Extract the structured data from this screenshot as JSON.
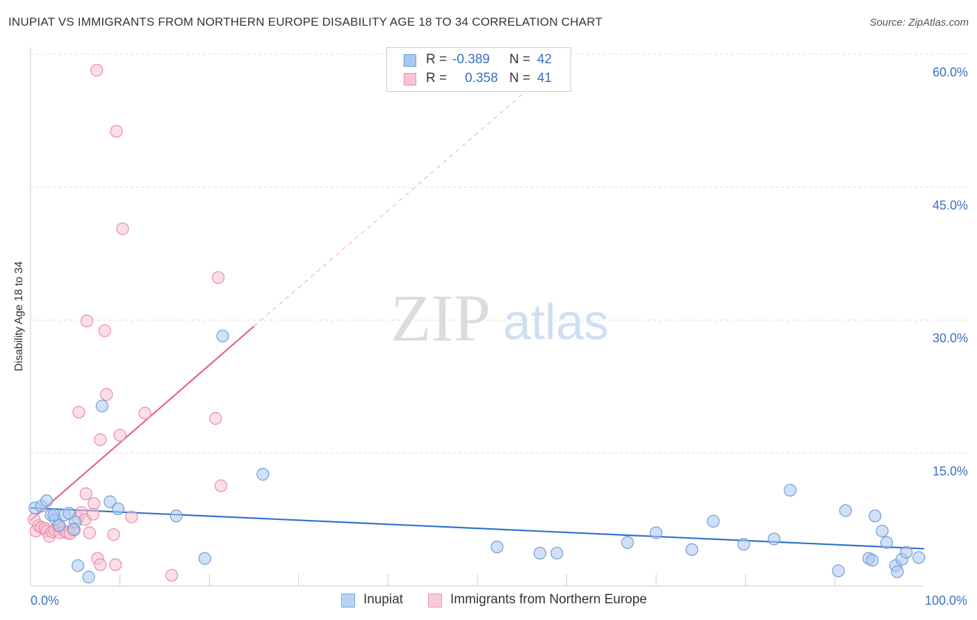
{
  "header": {
    "title": "INUPIAT VS IMMIGRANTS FROM NORTHERN EUROPE DISABILITY AGE 18 TO 34 CORRELATION CHART",
    "source": "Source: ZipAtlas.com"
  },
  "watermark": {
    "zip": "ZIP",
    "atlas": "atlas"
  },
  "legend": {
    "rows": [
      {
        "r_label": "R =",
        "r_value": "-0.389",
        "n_label": "N =",
        "n_value": "42",
        "color": "#a9c8f0",
        "border": "#6f9bd8"
      },
      {
        "r_label": "R =",
        "r_value": "0.358",
        "n_label": "N =",
        "n_value": "41",
        "color": "#f8c4d4",
        "border": "#e88aa6"
      }
    ]
  },
  "bottom_legend": {
    "items": [
      {
        "label": "Inupiat",
        "color": "#b9d3f3",
        "border": "#7aa3dc"
      },
      {
        "label": "Immigrants from Northern Europe",
        "color": "#fac9d7",
        "border": "#e997b0"
      }
    ]
  },
  "chart_data": {
    "type": "scatter",
    "title": "INUPIAT VS IMMIGRANTS FROM NORTHERN EUROPE DISABILITY AGE 18 TO 34 CORRELATION CHART",
    "xlabel": "",
    "ylabel": "Disability Age 18 to 34",
    "xlim": [
      0,
      100
    ],
    "ylim": [
      0,
      60
    ],
    "x_tick_labels": [
      {
        "x": 0,
        "label": "0.0%"
      },
      {
        "x": 100,
        "label": "100.0%"
      }
    ],
    "y_tick_labels": [
      {
        "y": 15,
        "label": "15.0%"
      },
      {
        "y": 30,
        "label": "30.0%"
      },
      {
        "y": 45,
        "label": "45.0%"
      },
      {
        "y": 60,
        "label": "60.0%"
      }
    ],
    "x_minor_ticks": [
      10,
      20,
      30,
      40,
      50,
      60,
      70,
      80,
      90
    ],
    "grid": true,
    "series": [
      {
        "name": "Inupiat",
        "color": "#a9c8f0",
        "edge": "#6f9bd8",
        "line_color": "#2f72cc",
        "trend": {
          "x0": 0,
          "y0": 8.8,
          "x1": 100,
          "y1": 4.2,
          "dashed_to": null
        },
        "points": [
          [
            0.5,
            8.8
          ],
          [
            1.2,
            9.0
          ],
          [
            1.8,
            9.6
          ],
          [
            2.3,
            8.0
          ],
          [
            2.8,
            7.5
          ],
          [
            2.6,
            8.0
          ],
          [
            3.2,
            6.8
          ],
          [
            3.8,
            8.0
          ],
          [
            4.3,
            8.2
          ],
          [
            5.0,
            7.2
          ],
          [
            4.8,
            6.4
          ],
          [
            5.3,
            2.3
          ],
          [
            6.5,
            1.0
          ],
          [
            8.0,
            20.3
          ],
          [
            8.9,
            9.5
          ],
          [
            9.8,
            8.7
          ],
          [
            16.3,
            7.9
          ],
          [
            19.5,
            3.1
          ],
          [
            21.5,
            28.2
          ],
          [
            26.0,
            12.6
          ],
          [
            52.2,
            4.4
          ],
          [
            57.0,
            3.7
          ],
          [
            58.9,
            3.7
          ],
          [
            66.8,
            4.9
          ],
          [
            70.0,
            6.0
          ],
          [
            74.0,
            4.1
          ],
          [
            76.4,
            7.3
          ],
          [
            79.8,
            4.7
          ],
          [
            83.2,
            5.3
          ],
          [
            85.0,
            10.8
          ],
          [
            90.4,
            1.7
          ],
          [
            91.2,
            8.5
          ],
          [
            93.8,
            3.1
          ],
          [
            94.5,
            7.9
          ],
          [
            95.3,
            6.2
          ],
          [
            95.8,
            4.9
          ],
          [
            96.8,
            2.3
          ],
          [
            97.0,
            1.6
          ],
          [
            97.5,
            3.0
          ],
          [
            98.0,
            3.8
          ],
          [
            99.4,
            3.2
          ],
          [
            94.2,
            2.9
          ]
        ]
      },
      {
        "name": "Immigrants from Northern Europe",
        "color": "#f8c4d4",
        "edge": "#e88aa6",
        "line_color": "#e8608c",
        "trend": {
          "x0": 0,
          "y0": 7.4,
          "x1": 25,
          "y1": 29.3,
          "dashed_to": {
            "x": 57,
            "y": 57.2
          }
        },
        "points": [
          [
            0.4,
            7.5
          ],
          [
            0.6,
            6.2
          ],
          [
            0.9,
            6.8
          ],
          [
            1.2,
            6.6
          ],
          [
            1.6,
            6.5
          ],
          [
            1.8,
            6.2
          ],
          [
            2.1,
            5.6
          ],
          [
            2.4,
            6.1
          ],
          [
            2.7,
            6.3
          ],
          [
            3.1,
            6.8
          ],
          [
            3.3,
            6.0
          ],
          [
            3.8,
            6.2
          ],
          [
            4.1,
            6.0
          ],
          [
            4.4,
            5.9
          ],
          [
            4.9,
            6.3
          ],
          [
            5.3,
            7.7
          ],
          [
            5.7,
            8.3
          ],
          [
            6.1,
            7.5
          ],
          [
            6.6,
            6.0
          ],
          [
            7.1,
            9.3
          ],
          [
            7.5,
            3.1
          ],
          [
            7.8,
            2.4
          ],
          [
            5.4,
            19.6
          ],
          [
            7.8,
            16.5
          ],
          [
            6.3,
            29.9
          ],
          [
            8.3,
            28.8
          ],
          [
            8.5,
            21.6
          ],
          [
            10.0,
            17.0
          ],
          [
            12.8,
            19.5
          ],
          [
            9.6,
            51.3
          ],
          [
            7.4,
            58.2
          ],
          [
            10.3,
            40.3
          ],
          [
            11.3,
            7.8
          ],
          [
            9.3,
            5.8
          ],
          [
            15.8,
            1.2
          ],
          [
            20.7,
            18.9
          ],
          [
            21.3,
            11.3
          ],
          [
            21.0,
            34.8
          ],
          [
            9.5,
            2.4
          ],
          [
            6.2,
            10.4
          ],
          [
            7.0,
            8.1
          ]
        ]
      }
    ]
  }
}
